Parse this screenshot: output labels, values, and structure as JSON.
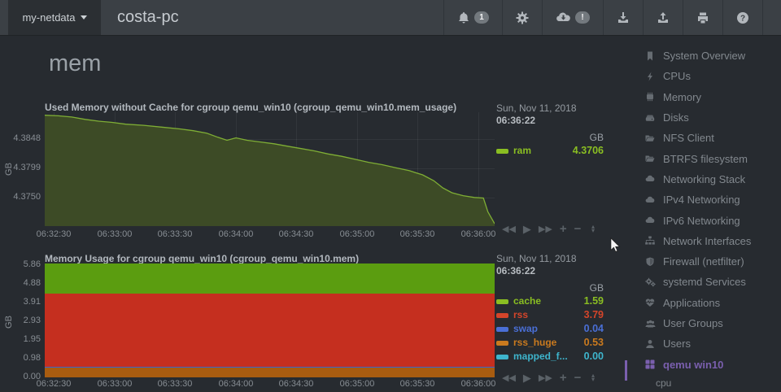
{
  "navbar": {
    "server_selector": "my-netdata",
    "hostname": "costa-pc",
    "alarms_badge": "1",
    "cloud_badge": "!",
    "icons": [
      "alarms-bell-icon",
      "settings-gear-icon",
      "cloud-sync-icon",
      "import-download-icon",
      "export-upload-icon",
      "print-icon",
      "help-icon"
    ]
  },
  "page": {
    "section_title": "mem"
  },
  "chart_toolbar": {
    "controls": [
      "pan-backward",
      "play",
      "pan-forward",
      "zoom-in",
      "zoom-out",
      "resize-handle"
    ]
  },
  "chart_data": [
    {
      "type": "area",
      "title": "Used Memory without Cache for cgroup qemu_win10 (cgroup_qemu_win10.mem_usage)",
      "ylabel": "GB",
      "unit": "GB",
      "timestamp_date": "Sun, Nov 11, 2018",
      "timestamp_time": "06:36:22",
      "x_ticks": [
        "06:32:30",
        "06:33:00",
        "06:33:30",
        "06:34:00",
        "06:34:30",
        "06:35:00",
        "06:35:30",
        "06:36:00"
      ],
      "y_ticks": [
        "4.3848",
        "4.3799",
        "4.3750"
      ],
      "ylim": [
        4.3702,
        4.3893
      ],
      "grid": true,
      "legend_position": "right",
      "series": [
        {
          "name": "ram",
          "color": "#3d4b26",
          "line_color": "#7fae35",
          "text_color": "#8abe22",
          "current": "4.3706",
          "points": [
            [
              0,
              4.3888
            ],
            [
              0.03,
              4.3887
            ],
            [
              0.06,
              4.3885
            ],
            [
              0.09,
              4.3881
            ],
            [
              0.12,
              4.3878
            ],
            [
              0.15,
              4.3876
            ],
            [
              0.18,
              4.3873
            ],
            [
              0.22,
              4.3871
            ],
            [
              0.26,
              4.3868
            ],
            [
              0.3,
              4.3865
            ],
            [
              0.33,
              4.3862
            ],
            [
              0.36,
              4.3858
            ],
            [
              0.385,
              4.3851
            ],
            [
              0.405,
              4.3846
            ],
            [
              0.425,
              4.385
            ],
            [
              0.45,
              4.3846
            ],
            [
              0.48,
              4.3843
            ],
            [
              0.51,
              4.384
            ],
            [
              0.54,
              4.3836
            ],
            [
              0.57,
              4.3832
            ],
            [
              0.6,
              4.3828
            ],
            [
              0.63,
              4.3823
            ],
            [
              0.66,
              4.3819
            ],
            [
              0.69,
              4.3814
            ],
            [
              0.72,
              4.3809
            ],
            [
              0.75,
              4.3805
            ],
            [
              0.78,
              4.38
            ],
            [
              0.81,
              4.3795
            ],
            [
              0.84,
              4.3788
            ],
            [
              0.865,
              4.3778
            ],
            [
              0.885,
              4.3766
            ],
            [
              0.905,
              4.3758
            ],
            [
              0.93,
              4.3753
            ],
            [
              0.955,
              4.375
            ],
            [
              0.975,
              4.3749
            ],
            [
              0.985,
              4.3726
            ],
            [
              1,
              4.3706
            ]
          ]
        }
      ]
    },
    {
      "type": "stacked-area",
      "title": "Memory Usage for cgroup qemu_win10 (cgroup_qemu_win10.mem)",
      "ylabel": "GB",
      "unit": "GB",
      "timestamp_date": "Sun, Nov 11, 2018",
      "timestamp_time": "06:36:22",
      "x_ticks": [
        "06:32:30",
        "06:33:00",
        "06:33:30",
        "06:34:00",
        "06:34:30",
        "06:35:00",
        "06:35:30",
        "06:36:00"
      ],
      "y_ticks": [
        "5.86",
        "4.88",
        "3.91",
        "2.93",
        "1.95",
        "0.98",
        "0.00"
      ],
      "ylim": [
        0,
        6.03
      ],
      "grid": true,
      "legend_position": "right",
      "series": [
        {
          "name": "cache",
          "color": "#5b9d10",
          "text_color": "#8abe22",
          "value": 1.59,
          "current": "1.59"
        },
        {
          "name": "rss",
          "color": "#c52f1f",
          "text_color": "#d4452a",
          "value": 3.79,
          "current": "3.79"
        },
        {
          "name": "swap",
          "color": "#3a66cc",
          "text_color": "#4a6fd6",
          "value": 0.04,
          "current": "0.04"
        },
        {
          "name": "rss_huge",
          "color": "#a85c10",
          "text_color": "#ca7a1e",
          "value": 0.53,
          "current": "0.53"
        },
        {
          "name": "mapped_f...",
          "color": "#2fa6b8",
          "text_color": "#3eb5cd",
          "value": 0.0,
          "current": "0.00"
        }
      ]
    }
  ],
  "sidebar": {
    "active_color": "#7a5fae",
    "items": [
      {
        "label": "System Overview",
        "icon": "bookmark-icon"
      },
      {
        "label": "CPUs",
        "icon": "bolt-icon"
      },
      {
        "label": "Memory",
        "icon": "memory-chip-icon"
      },
      {
        "label": "Disks",
        "icon": "hdd-icon"
      },
      {
        "label": "NFS Client",
        "icon": "folder-icon"
      },
      {
        "label": "BTRFS filesystem",
        "icon": "folder-icon"
      },
      {
        "label": "Networking Stack",
        "icon": "cloud-icon"
      },
      {
        "label": "IPv4 Networking",
        "icon": "cloud-icon"
      },
      {
        "label": "IPv6 Networking",
        "icon": "cloud-icon"
      },
      {
        "label": "Network Interfaces",
        "icon": "sitemap-icon"
      },
      {
        "label": "Firewall (netfilter)",
        "icon": "shield-icon"
      },
      {
        "label": "systemd Services",
        "icon": "cogs-icon"
      },
      {
        "label": "Applications",
        "icon": "heartbeat-icon"
      },
      {
        "label": "User Groups",
        "icon": "users-icon"
      },
      {
        "label": "Users",
        "icon": "user-icon"
      },
      {
        "label": "qemu win10",
        "icon": "grid-icon",
        "active": true
      }
    ],
    "subitem": "cpu"
  }
}
